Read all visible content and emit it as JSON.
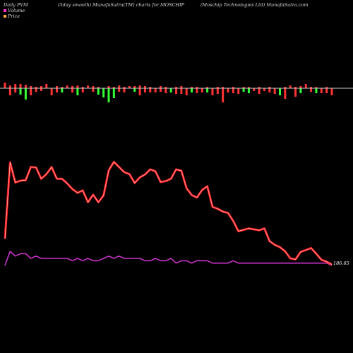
{
  "header": {
    "left": "Daily PVM",
    "middle": "(5day smooth) MunafaSutra(TM) charts for MOSCHIP",
    "right": "(Moschip Technologies Ltd) MunafaSutra.com"
  },
  "legend": {
    "volume_label": "Volume",
    "price_label": "Price",
    "volume_color": "#ff33cc",
    "price_color": "#ffaa44"
  },
  "colors": {
    "price_line": "#ff1a1a",
    "price_line_highlight": "#ffdddd",
    "volume_line": "#cc33cc",
    "bar_up": "#33ff33",
    "bar_down": "#ff3333",
    "baseline": "#cccccc"
  },
  "chart_data": {
    "type": "line",
    "end_label": "186.65",
    "price": [
      102,
      265,
      222,
      226,
      227,
      255,
      254,
      230,
      240,
      255,
      230,
      230,
      220,
      208,
      200,
      205,
      180,
      196,
      180,
      194,
      248,
      266,
      255,
      244,
      240,
      221,
      233,
      239,
      250,
      246,
      223,
      225,
      230,
      250,
      247,
      210,
      195,
      190,
      206,
      214,
      170,
      166,
      160,
      157,
      140,
      118,
      121,
      124,
      122,
      120,
      124,
      97,
      89,
      84,
      75,
      60,
      58,
      74,
      78,
      82,
      70,
      57,
      53,
      47
    ],
    "volume": [
      7,
      13,
      11,
      12,
      12,
      10,
      11,
      10,
      10,
      10,
      10,
      10,
      10,
      9,
      10,
      9,
      10,
      9,
      9,
      10,
      11,
      10,
      11,
      10,
      10,
      10,
      10,
      9,
      9,
      10,
      9,
      9,
      10,
      8,
      9,
      9,
      8,
      9,
      9,
      9,
      8,
      8,
      8,
      8,
      9,
      8,
      8,
      8,
      8,
      8,
      8,
      8,
      8,
      8,
      8,
      8,
      8,
      8,
      8,
      8,
      8,
      8,
      8,
      7
    ],
    "pvm_bars": [
      {
        "up": 8,
        "down": 0
      },
      {
        "up": 4,
        "down": 10
      },
      {
        "up": 6,
        "down": 6
      },
      {
        "up": 6,
        "down": 9
      },
      {
        "up": 5,
        "down": 16
      },
      {
        "up": 3,
        "down": 10
      },
      {
        "up": 2,
        "down": 5
      },
      {
        "up": 3,
        "down": 4
      },
      {
        "up": 6,
        "down": 0
      },
      {
        "up": 0,
        "down": 10
      },
      {
        "up": 3,
        "down": 6
      },
      {
        "up": 2,
        "down": 6
      },
      {
        "up": 4,
        "down": 0
      },
      {
        "up": 3,
        "down": 6
      },
      {
        "up": 4,
        "down": 10
      },
      {
        "up": 2,
        "down": 6
      },
      {
        "up": 4,
        "down": 0
      },
      {
        "up": 3,
        "down": 5
      },
      {
        "up": 2,
        "down": 9
      },
      {
        "up": 0,
        "down": 13
      },
      {
        "up": 3,
        "down": 20
      },
      {
        "up": 2,
        "down": 14
      },
      {
        "up": 4,
        "down": 5
      },
      {
        "up": 2,
        "down": 6
      },
      {
        "up": 3,
        "down": 0
      },
      {
        "up": 3,
        "down": 5
      },
      {
        "up": 4,
        "down": 10
      },
      {
        "up": 3,
        "down": 6
      },
      {
        "up": 2,
        "down": 6
      },
      {
        "up": 0,
        "down": 6
      },
      {
        "up": 3,
        "down": 5
      },
      {
        "up": 2,
        "down": 7
      },
      {
        "up": 0,
        "down": 6
      },
      {
        "up": 2,
        "down": 8
      },
      {
        "up": 3,
        "down": 8
      },
      {
        "up": 0,
        "down": 10
      },
      {
        "up": 2,
        "down": 6
      },
      {
        "up": 2,
        "down": 7
      },
      {
        "up": 0,
        "down": 6
      },
      {
        "up": 2,
        "down": 6
      },
      {
        "up": 0,
        "down": 10
      },
      {
        "up": 2,
        "down": 8
      },
      {
        "up": 2,
        "down": 20
      },
      {
        "up": 0,
        "down": 6
      },
      {
        "up": 2,
        "down": 7
      },
      {
        "up": 0,
        "down": 8
      },
      {
        "up": 2,
        "down": 5
      },
      {
        "up": 2,
        "down": 7
      },
      {
        "up": 0,
        "down": 4
      },
      {
        "up": 2,
        "down": 8
      },
      {
        "up": 0,
        "down": 4
      },
      {
        "up": 2,
        "down": 6
      },
      {
        "up": 0,
        "down": 8
      },
      {
        "up": 0,
        "down": 10
      },
      {
        "up": 2,
        "down": 15
      },
      {
        "up": 4,
        "down": 0
      },
      {
        "up": 2,
        "down": 12
      },
      {
        "up": 3,
        "down": 7
      },
      {
        "up": 6,
        "down": 0
      },
      {
        "up": 2,
        "down": 5
      },
      {
        "up": 2,
        "down": 7
      },
      {
        "up": 0,
        "down": 7
      },
      {
        "up": 2,
        "down": 7
      },
      {
        "up": 0,
        "down": 10
      }
    ]
  }
}
